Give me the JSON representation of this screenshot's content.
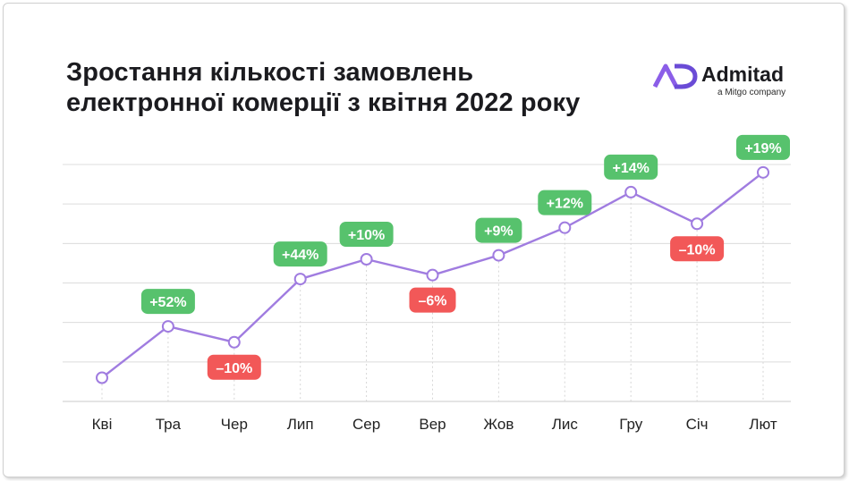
{
  "title": {
    "line1": "Зростання кількості замовлень",
    "line2": "електронної комерції з квітня 2022 року"
  },
  "brand": {
    "name": "Admitad",
    "tagline": "a Mitgo company",
    "icon": "admitad-logo-icon"
  },
  "colors": {
    "line": "#a07ce0",
    "grid": "#dcdcdc",
    "positive_badge": "#57c26d",
    "negative_badge": "#f25858",
    "badge_text": "#ffffff",
    "tick_text": "#222222"
  },
  "chart_data": {
    "type": "line",
    "categories": [
      "Кві",
      "Тра",
      "Чер",
      "Лип",
      "Сер",
      "Вер",
      "Жов",
      "Лис",
      "Гру",
      "Січ",
      "Лют"
    ],
    "series": [
      {
        "values": [
          0.6,
          1.9,
          1.5,
          3.1,
          3.6,
          3.2,
          3.7,
          4.4,
          5.3,
          4.5,
          5.8
        ],
        "labels": [
          "",
          "+52%",
          "–10%",
          "+44%",
          "+10%",
          "–6%",
          "+9%",
          "+12%",
          "+14%",
          "–10%",
          "+19%"
        ]
      }
    ],
    "ylim": [
      0,
      6
    ],
    "grid": true,
    "y_tick_labels": false
  }
}
